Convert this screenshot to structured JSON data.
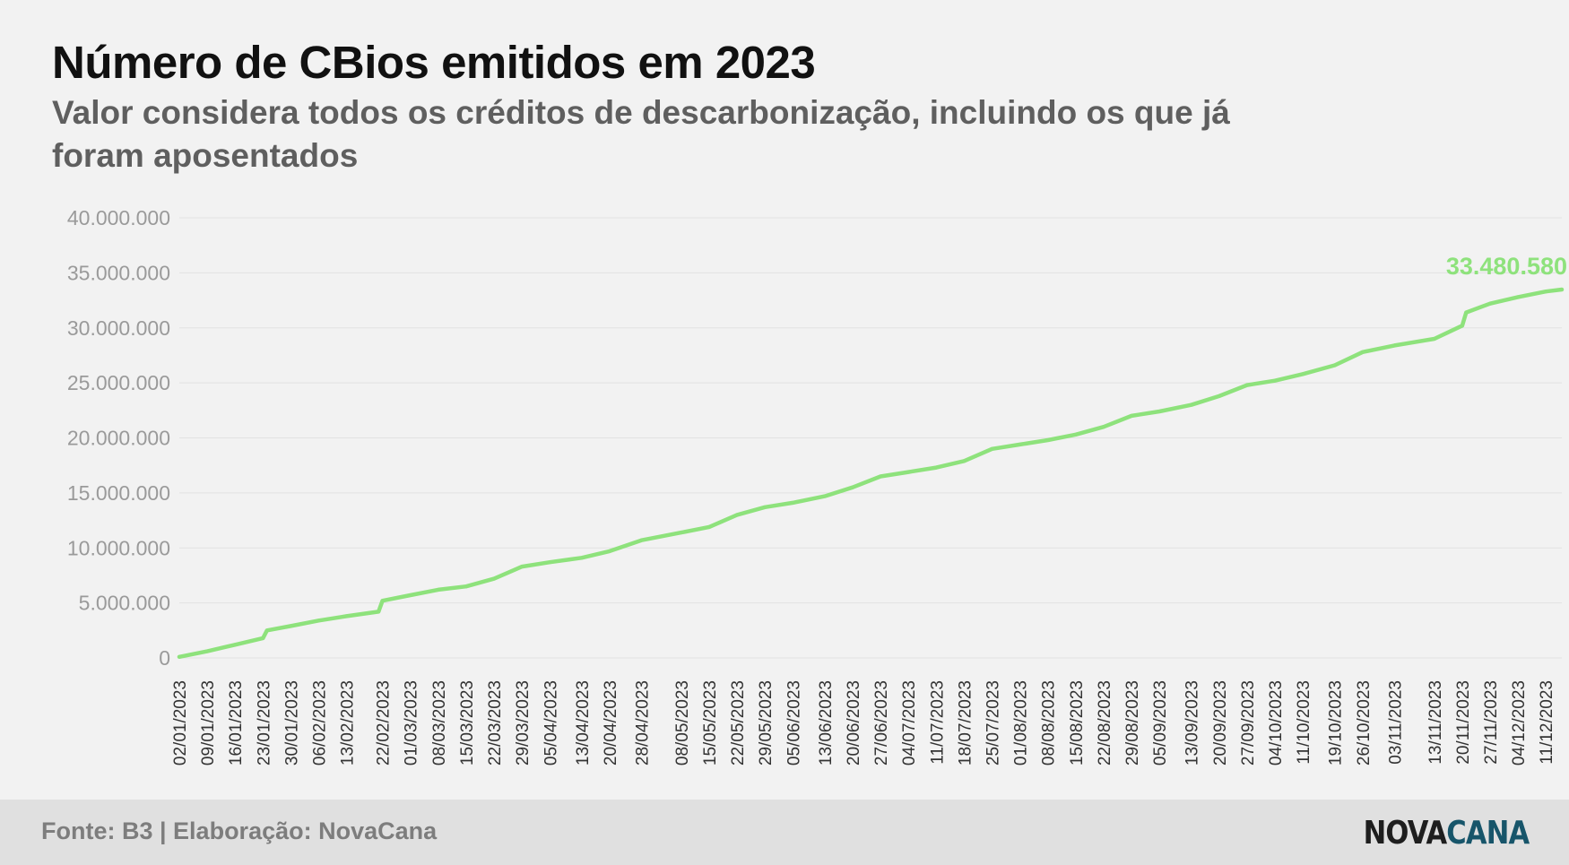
{
  "header": {
    "title": "Número de CBios emitidos em 2023",
    "subtitle": "Valor considera todos os créditos de descarbonização, incluindo os que já foram aposentados"
  },
  "footer": {
    "source": "Fonte: B3 | Elaboração: NovaCana",
    "logo_part1": "NOVA",
    "logo_part2": "CANA"
  },
  "colors": {
    "line": "#8ee27c",
    "end_label": "#8ee27c",
    "grid": "#e2e2e2",
    "tick": "#9a9a9a"
  },
  "chart_data": {
    "type": "line",
    "title": "Número de CBios emitidos em 2023",
    "xlabel": "",
    "ylabel": "",
    "ylim": [
      0,
      40000000
    ],
    "y_ticks": [
      0,
      5000000,
      10000000,
      15000000,
      20000000,
      25000000,
      30000000,
      35000000,
      40000000
    ],
    "y_tick_labels": [
      "0",
      "5.000.000",
      "10.000.000",
      "15.000.000",
      "20.000.000",
      "25.000.000",
      "30.000.000",
      "35.000.000",
      "40.000.000"
    ],
    "x_tick_labels": [
      "02/01/2023",
      "09/01/2023",
      "16/01/2023",
      "23/01/2023",
      "30/01/2023",
      "06/02/2023",
      "13/02/2023",
      "22/02/2023",
      "01/03/2023",
      "08/03/2023",
      "15/03/2023",
      "22/03/2023",
      "29/03/2023",
      "05/04/2023",
      "13/04/2023",
      "20/04/2023",
      "28/04/2023",
      "08/05/2023",
      "15/05/2023",
      "22/05/2023",
      "29/05/2023",
      "05/06/2023",
      "13/06/2023",
      "20/06/2023",
      "27/06/2023",
      "04/07/2023",
      "11/07/2023",
      "18/07/2023",
      "25/07/2023",
      "01/08/2023",
      "08/08/2023",
      "15/08/2023",
      "22/08/2023",
      "29/08/2023",
      "05/09/2023",
      "13/09/2023",
      "20/09/2023",
      "27/09/2023",
      "04/10/2023",
      "11/10/2023",
      "19/10/2023",
      "26/10/2023",
      "03/11/2023",
      "13/11/2023",
      "20/11/2023",
      "27/11/2023",
      "04/12/2023",
      "11/12/2023"
    ],
    "grid": true,
    "legend": "none",
    "end_label": "33.480.580",
    "series": [
      {
        "values": [
          {
            "x": "02/01/2023",
            "y": 100000
          },
          {
            "x": "09/01/2023",
            "y": 600000
          },
          {
            "x": "16/01/2023",
            "y": 1200000
          },
          {
            "x": "23/01/2023",
            "y": 1800000
          },
          {
            "x": "24/01/2023",
            "y": 2500000
          },
          {
            "x": "30/01/2023",
            "y": 2900000
          },
          {
            "x": "06/02/2023",
            "y": 3400000
          },
          {
            "x": "13/02/2023",
            "y": 3800000
          },
          {
            "x": "21/02/2023",
            "y": 4200000
          },
          {
            "x": "22/02/2023",
            "y": 5200000
          },
          {
            "x": "01/03/2023",
            "y": 5700000
          },
          {
            "x": "08/03/2023",
            "y": 6200000
          },
          {
            "x": "15/03/2023",
            "y": 6500000
          },
          {
            "x": "22/03/2023",
            "y": 7200000
          },
          {
            "x": "29/03/2023",
            "y": 8300000
          },
          {
            "x": "05/04/2023",
            "y": 8700000
          },
          {
            "x": "13/04/2023",
            "y": 9100000
          },
          {
            "x": "20/04/2023",
            "y": 9700000
          },
          {
            "x": "28/04/2023",
            "y": 10700000
          },
          {
            "x": "08/05/2023",
            "y": 11400000
          },
          {
            "x": "15/05/2023",
            "y": 11900000
          },
          {
            "x": "22/05/2023",
            "y": 13000000
          },
          {
            "x": "29/05/2023",
            "y": 13700000
          },
          {
            "x": "05/06/2023",
            "y": 14100000
          },
          {
            "x": "13/06/2023",
            "y": 14700000
          },
          {
            "x": "20/06/2023",
            "y": 15500000
          },
          {
            "x": "27/06/2023",
            "y": 16500000
          },
          {
            "x": "04/07/2023",
            "y": 16900000
          },
          {
            "x": "11/07/2023",
            "y": 17300000
          },
          {
            "x": "18/07/2023",
            "y": 17900000
          },
          {
            "x": "25/07/2023",
            "y": 19000000
          },
          {
            "x": "01/08/2023",
            "y": 19400000
          },
          {
            "x": "08/08/2023",
            "y": 19800000
          },
          {
            "x": "15/08/2023",
            "y": 20300000
          },
          {
            "x": "22/08/2023",
            "y": 21000000
          },
          {
            "x": "29/08/2023",
            "y": 22000000
          },
          {
            "x": "05/09/2023",
            "y": 22400000
          },
          {
            "x": "13/09/2023",
            "y": 23000000
          },
          {
            "x": "20/09/2023",
            "y": 23800000
          },
          {
            "x": "27/09/2023",
            "y": 24800000
          },
          {
            "x": "04/10/2023",
            "y": 25200000
          },
          {
            "x": "11/10/2023",
            "y": 25800000
          },
          {
            "x": "19/10/2023",
            "y": 26600000
          },
          {
            "x": "26/10/2023",
            "y": 27800000
          },
          {
            "x": "03/11/2023",
            "y": 28400000
          },
          {
            "x": "13/11/2023",
            "y": 29000000
          },
          {
            "x": "20/11/2023",
            "y": 30200000
          },
          {
            "x": "21/11/2023",
            "y": 31400000
          },
          {
            "x": "27/11/2023",
            "y": 32200000
          },
          {
            "x": "04/12/2023",
            "y": 32800000
          },
          {
            "x": "11/12/2023",
            "y": 33300000
          },
          {
            "x": "15/12/2023",
            "y": 33480580
          }
        ]
      }
    ]
  }
}
